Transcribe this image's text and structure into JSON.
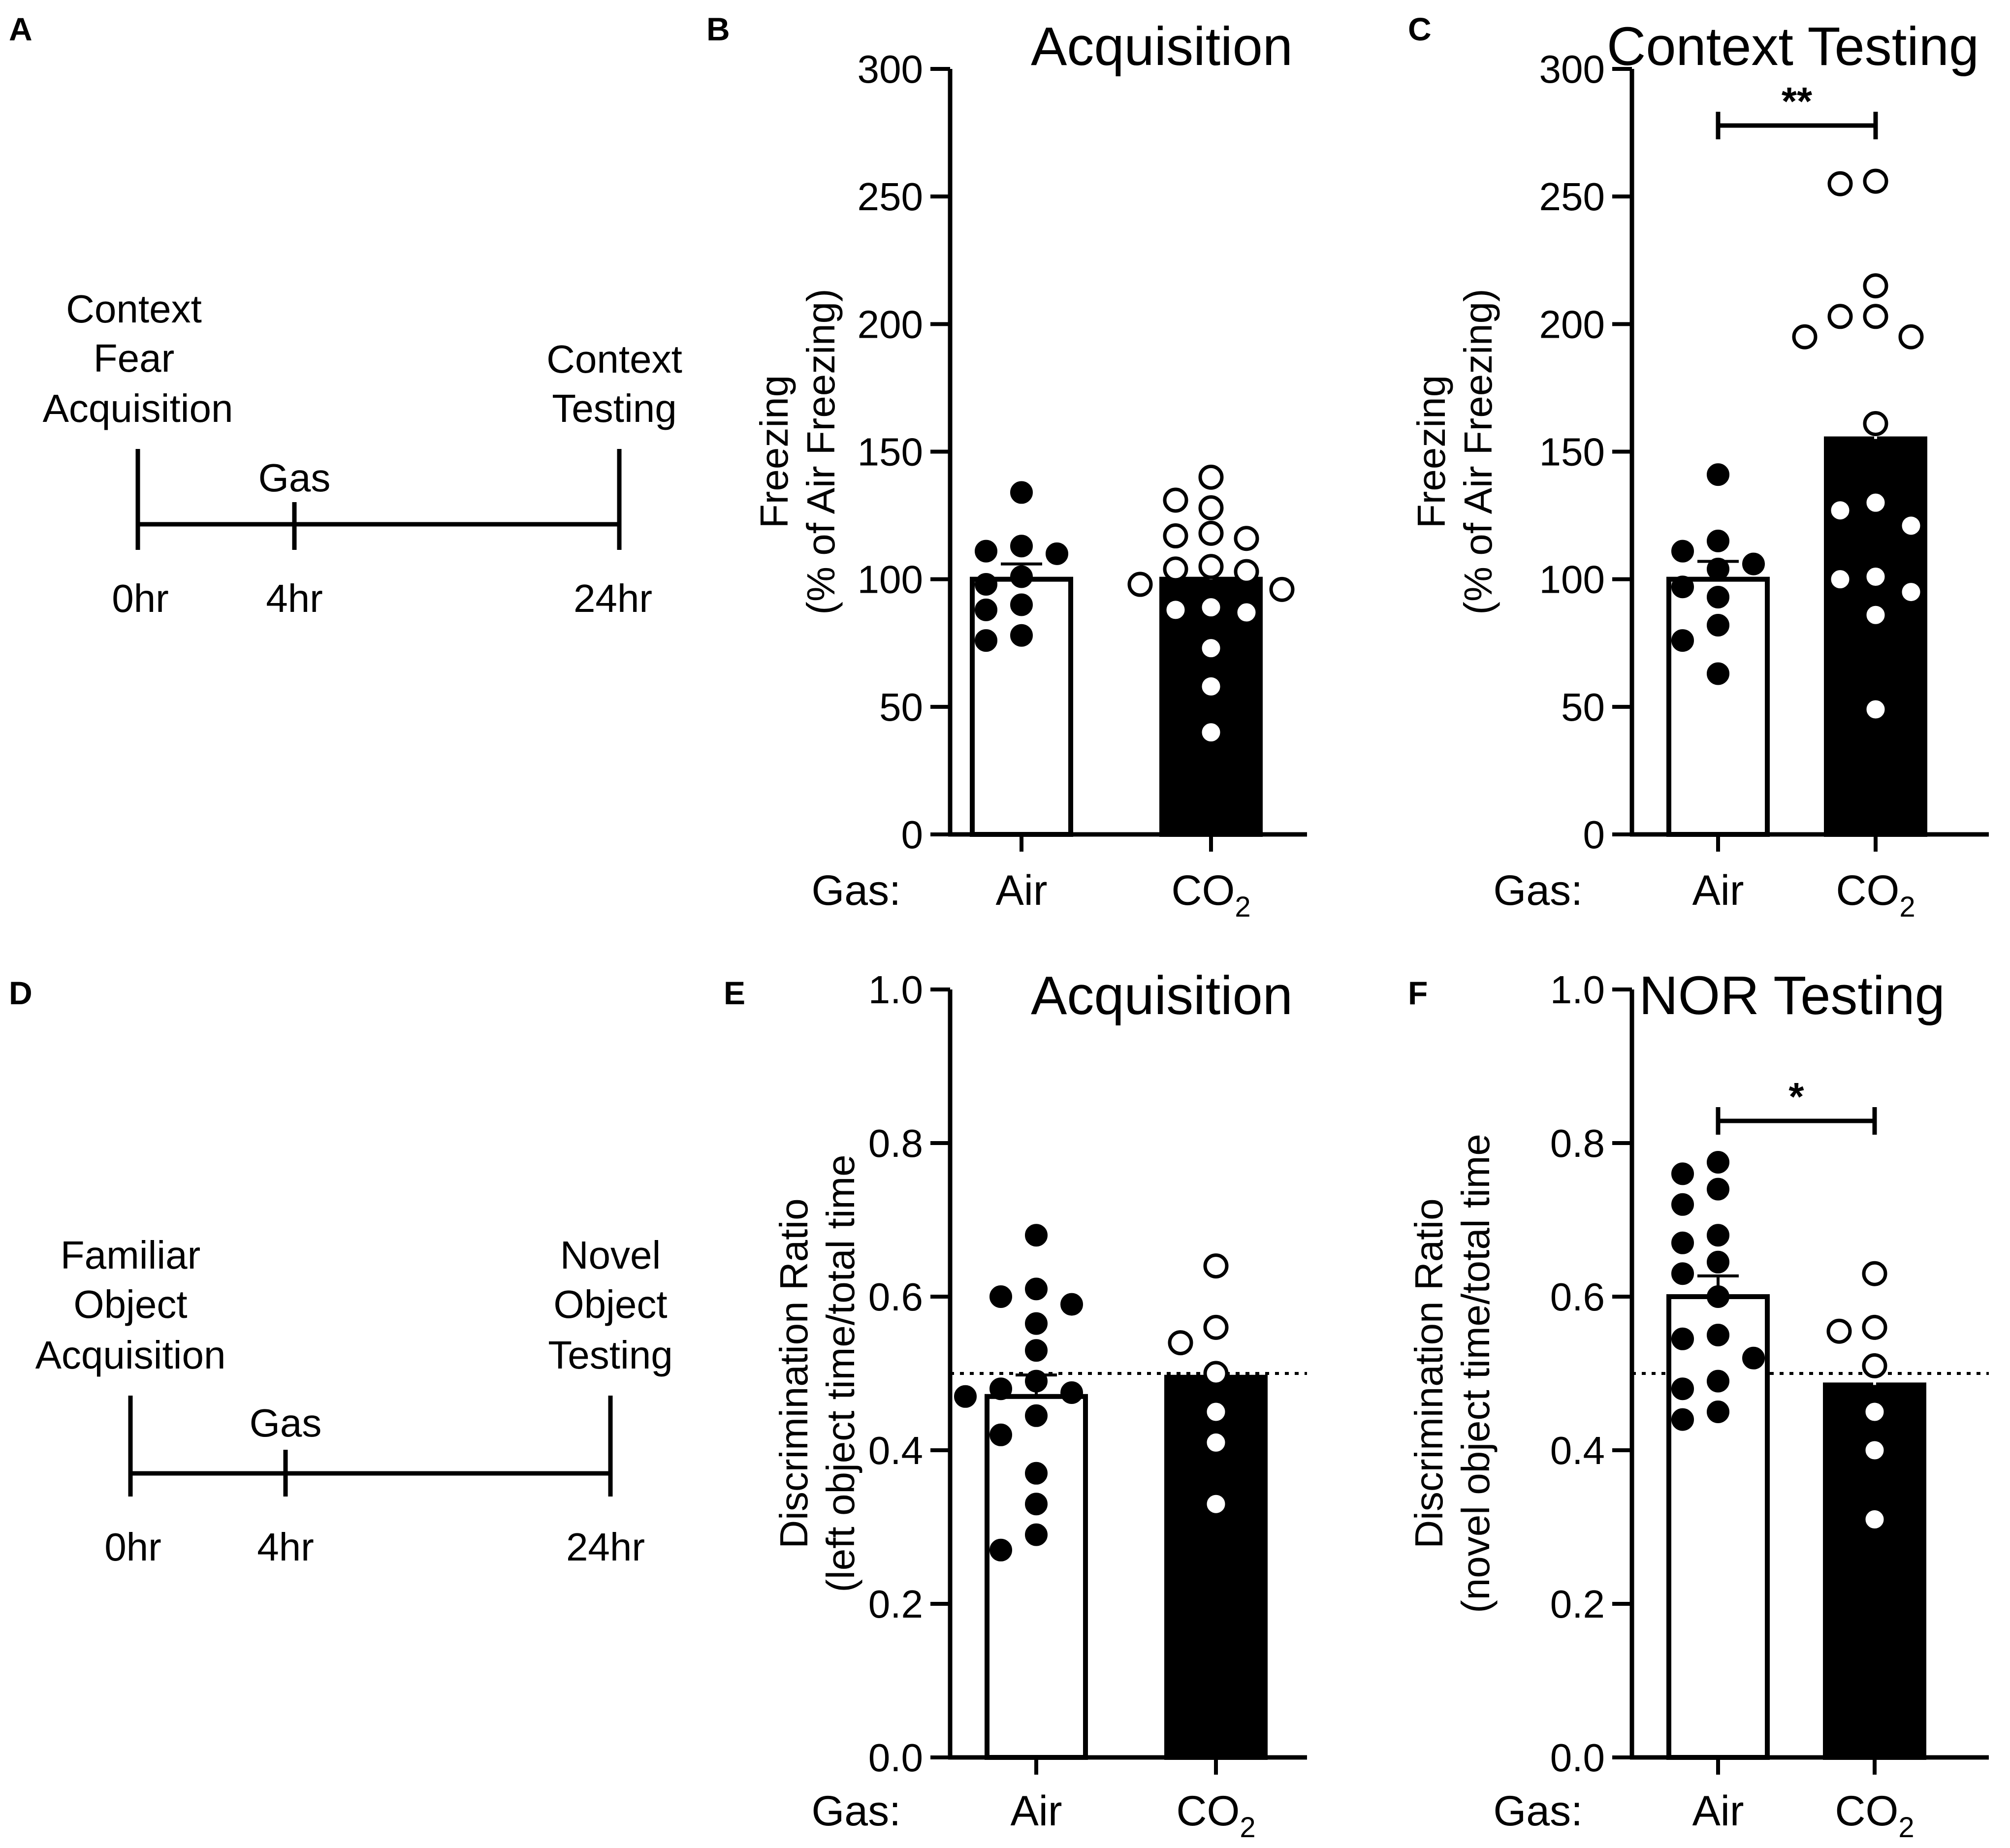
{
  "panels": {
    "A": {
      "label": "A",
      "events": [
        "Context",
        "Fear",
        "Acquisition"
      ],
      "end_event": [
        "Context",
        "Testing"
      ],
      "gas_label": "Gas",
      "times": [
        "0hr",
        "4hr",
        "24hr"
      ]
    },
    "B": {
      "label": "B"
    },
    "C": {
      "label": "C"
    },
    "D": {
      "label": "D",
      "events": [
        "Familiar",
        "Object",
        "Acquisition"
      ],
      "end_event": [
        "Novel",
        "Object",
        "Testing"
      ],
      "gas_label": "Gas",
      "times": [
        "0hr",
        "4hr",
        "24hr"
      ]
    },
    "E": {
      "label": "E"
    },
    "F": {
      "label": "F"
    }
  },
  "chart_data": [
    {
      "id": "B",
      "type": "bar",
      "title": "Acquisition",
      "ylabel": [
        "Freezing",
        "(% of Air Freezing)"
      ],
      "xprefix": "Gas:",
      "categories": [
        "Air",
        "CO2"
      ],
      "category_display": [
        {
          "main": "Air",
          "sub": ""
        },
        {
          "main": "CO",
          "sub": "2"
        }
      ],
      "values": [
        100,
        100
      ],
      "sem": [
        6,
        6
      ],
      "bar_colors": [
        "#ffffff",
        "#000000"
      ],
      "ylim": [
        0,
        300
      ],
      "yticks": [
        0,
        50,
        100,
        150,
        200,
        250,
        300
      ],
      "ytick_labels": [
        "0",
        "50",
        "100",
        "150",
        "200",
        "250",
        "300"
      ],
      "points": [
        [
          134,
          113,
          111,
          110,
          101,
          98,
          90,
          88,
          78,
          76
        ],
        [
          140,
          131,
          128,
          118,
          117,
          116,
          105,
          104,
          103,
          98,
          96,
          89,
          88,
          87,
          73,
          58,
          40
        ]
      ],
      "reference_line": null,
      "significance": null
    },
    {
      "id": "C",
      "type": "bar",
      "title": "Context Testing",
      "ylabel": [
        "Freezing",
        "(% of Air Freezing)"
      ],
      "xprefix": "Gas:",
      "categories": [
        "Air",
        "CO2"
      ],
      "category_display": [
        {
          "main": "Air",
          "sub": ""
        },
        {
          "main": "CO",
          "sub": "2"
        }
      ],
      "values": [
        100,
        155
      ],
      "sem": [
        7,
        14
      ],
      "bar_colors": [
        "#ffffff",
        "#000000"
      ],
      "ylim": [
        0,
        300
      ],
      "yticks": [
        0,
        50,
        100,
        150,
        200,
        250,
        300
      ],
      "ytick_labels": [
        "0",
        "50",
        "100",
        "150",
        "200",
        "250",
        "300"
      ],
      "points": [
        [
          141,
          115,
          111,
          106,
          104,
          97,
          93,
          82,
          76,
          63
        ],
        [
          256,
          255,
          215,
          203,
          203,
          195,
          195,
          161,
          130,
          127,
          121,
          101,
          100,
          95,
          86,
          49
        ]
      ],
      "reference_line": null,
      "significance": "**"
    },
    {
      "id": "E",
      "type": "bar",
      "title": "Acquisition",
      "ylabel": [
        "Discrimination Ratio",
        "(left object time/total time"
      ],
      "xprefix": "Gas:",
      "categories": [
        "Air",
        "CO2"
      ],
      "category_display": [
        {
          "main": "Air",
          "sub": ""
        },
        {
          "main": "CO",
          "sub": "2"
        }
      ],
      "values": [
        0.47,
        0.495
      ],
      "sem": [
        0.028,
        0.04
      ],
      "bar_colors": [
        "#ffffff",
        "#000000"
      ],
      "ylim": [
        0.0,
        1.0
      ],
      "yticks": [
        0.0,
        0.2,
        0.4,
        0.6,
        0.8,
        1.0
      ],
      "ytick_labels": [
        "0.0",
        "0.2",
        "0.4",
        "0.6",
        "0.8",
        "1.0"
      ],
      "points": [
        [
          0.68,
          0.61,
          0.6,
          0.59,
          0.565,
          0.53,
          0.49,
          0.48,
          0.475,
          0.47,
          0.445,
          0.42,
          0.37,
          0.33,
          0.29,
          0.27
        ],
        [
          0.64,
          0.56,
          0.54,
          0.5,
          0.45,
          0.41,
          0.33
        ]
      ],
      "reference_line": 0.5,
      "significance": null
    },
    {
      "id": "F",
      "type": "bar",
      "title": "NOR Testing",
      "ylabel": [
        "Discrimination Ratio",
        "(novel object time/total time"
      ],
      "xprefix": "Gas:",
      "categories": [
        "Air",
        "CO2"
      ],
      "category_display": [
        {
          "main": "Air",
          "sub": ""
        },
        {
          "main": "CO",
          "sub": "2"
        }
      ],
      "values": [
        0.6,
        0.485
      ],
      "sem": [
        0.027,
        0.042
      ],
      "bar_colors": [
        "#ffffff",
        "#000000"
      ],
      "ylim": [
        0.0,
        1.0
      ],
      "yticks": [
        0.0,
        0.2,
        0.4,
        0.6,
        0.8,
        1.0
      ],
      "ytick_labels": [
        "0.0",
        "0.2",
        "0.4",
        "0.6",
        "0.8",
        "1.0"
      ],
      "points": [
        [
          0.775,
          0.76,
          0.74,
          0.72,
          0.68,
          0.67,
          0.645,
          0.63,
          0.6,
          0.55,
          0.545,
          0.52,
          0.49,
          0.48,
          0.45,
          0.44
        ],
        [
          0.63,
          0.56,
          0.555,
          0.51,
          0.45,
          0.4,
          0.31
        ]
      ],
      "reference_line": 0.5,
      "significance": "*"
    }
  ]
}
